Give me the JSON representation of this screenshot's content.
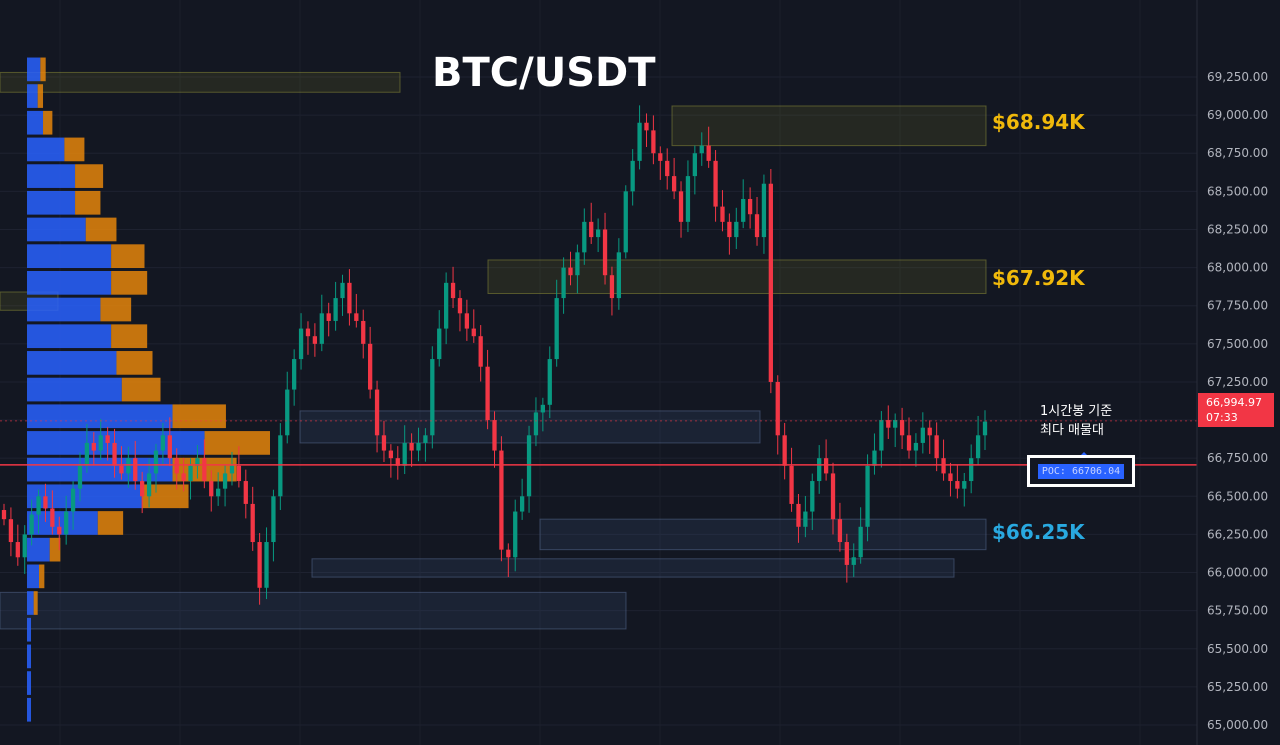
{
  "title": "BTC/USDT",
  "levels": {
    "top": {
      "label": "$68.94K",
      "color": "#f0b90b"
    },
    "mid": {
      "label": "$67.92K",
      "color": "#f0b90b"
    },
    "bottom": {
      "label": "$66.25K",
      "color": "#29a9e0"
    }
  },
  "note": {
    "line1": "1시간봉 기준",
    "line2": "최다 매물대"
  },
  "poc": {
    "label": "POC: 66706.04",
    "price": 66706.04
  },
  "current": {
    "price": "66,994.97",
    "countdown": "07:33"
  },
  "colors": {
    "up": "#089981",
    "down": "#f23645",
    "background": "#131722",
    "vp_blue": "#2962ff",
    "vp_orange": "#e5850b"
  },
  "chart_data": {
    "type": "candlestick",
    "ylim": [
      65000,
      69400
    ],
    "y_ticks": [
      "69,250.00",
      "69,000.00",
      "68,750.00",
      "68,500.00",
      "68,250.00",
      "68,000.00",
      "67,750.00",
      "67,500.00",
      "67,250.00",
      "67,000.00",
      "66,750.00",
      "66,500.00",
      "66,250.00",
      "66,000.00",
      "65,750.00",
      "65,500.00",
      "65,250.00",
      "65,000.00"
    ],
    "closes": [
      66350,
      66200,
      66100,
      66250,
      66380,
      66500,
      66420,
      66300,
      66250,
      66400,
      66550,
      66700,
      66850,
      66800,
      66900,
      66850,
      66700,
      66650,
      66750,
      66600,
      66500,
      66650,
      66800,
      66900,
      66750,
      66650,
      66600,
      66700,
      66750,
      66600,
      66500,
      66550,
      66650,
      66700,
      66600,
      66450,
      66200,
      65900,
      66200,
      66500,
      66900,
      67200,
      67400,
      67600,
      67550,
      67500,
      67700,
      67650,
      67800,
      67900,
      67700,
      67650,
      67500,
      67200,
      66900,
      66800,
      66750,
      66700,
      66850,
      66800,
      66850,
      66900,
      67400,
      67600,
      67900,
      67800,
      67700,
      67600,
      67550,
      67350,
      67000,
      66800,
      66150,
      66100,
      66400,
      66500,
      66900,
      67050,
      67100,
      67400,
      67800,
      68000,
      67950,
      68100,
      68300,
      68200,
      68250,
      67950,
      67800,
      68100,
      68500,
      68700,
      68950,
      68900,
      68750,
      68700,
      68600,
      68500,
      68300,
      68600,
      68750,
      68800,
      68700,
      68400,
      68300,
      68200,
      68300,
      68450,
      68350,
      68200,
      68550,
      67250,
      66900,
      66700,
      66450,
      66300,
      66400,
      66600,
      66750,
      66650,
      66350,
      66200,
      66050,
      66100,
      66300,
      66700,
      66800,
      67000,
      66950,
      67000,
      66900,
      66800,
      66850,
      66950,
      66900,
      66750,
      66650,
      66600,
      66550,
      66600,
      66750,
      66900,
      66990
    ],
    "volume_profile": [
      {
        "price": 69300,
        "up": 0.1,
        "down": 0.04
      },
      {
        "price": 69125,
        "up": 0.08,
        "down": 0.04
      },
      {
        "price": 68950,
        "up": 0.12,
        "down": 0.07
      },
      {
        "price": 68775,
        "up": 0.28,
        "down": 0.15
      },
      {
        "price": 68600,
        "up": 0.36,
        "down": 0.21
      },
      {
        "price": 68425,
        "up": 0.36,
        "down": 0.19
      },
      {
        "price": 68250,
        "up": 0.44,
        "down": 0.23
      },
      {
        "price": 68075,
        "up": 0.63,
        "down": 0.25
      },
      {
        "price": 67900,
        "up": 0.63,
        "down": 0.27
      },
      {
        "price": 67725,
        "up": 0.55,
        "down": 0.23
      },
      {
        "price": 67550,
        "up": 0.63,
        "down": 0.27
      },
      {
        "price": 67375,
        "up": 0.67,
        "down": 0.27
      },
      {
        "price": 67200,
        "up": 0.71,
        "down": 0.29
      },
      {
        "price": 67025,
        "up": 1.09,
        "down": 0.4
      },
      {
        "price": 66850,
        "up": 1.33,
        "down": 0.49
      },
      {
        "price": 66675,
        "up": 1.09,
        "down": 0.48
      },
      {
        "price": 66500,
        "up": 0.86,
        "down": 0.35
      },
      {
        "price": 66325,
        "up": 0.53,
        "down": 0.19
      },
      {
        "price": 66150,
        "up": 0.17,
        "down": 0.08
      },
      {
        "price": 65975,
        "up": 0.09,
        "down": 0.04
      },
      {
        "price": 65800,
        "up": 0.05,
        "down": 0.03
      },
      {
        "price": 65625,
        "up": 0.03,
        "down": 0.0
      },
      {
        "price": 65450,
        "up": 0.03,
        "down": 0.0
      },
      {
        "price": 65275,
        "up": 0.03,
        "down": 0.0
      },
      {
        "price": 65100,
        "up": 0.03,
        "down": 0.0
      }
    ],
    "zones": [
      {
        "from": 69150,
        "to": 69280,
        "kind": "supply"
      },
      {
        "from": 68800,
        "to": 69060,
        "kind": "supply"
      },
      {
        "from": 67830,
        "to": 68050,
        "kind": "supply"
      },
      {
        "from": 67720,
        "to": 67840,
        "kind": "supply"
      },
      {
        "from": 66850,
        "to": 67060,
        "kind": "demand"
      },
      {
        "from": 66150,
        "to": 66350,
        "kind": "demand"
      },
      {
        "from": 65970,
        "to": 66090,
        "kind": "demand"
      },
      {
        "from": 65630,
        "to": 65870,
        "kind": "demand"
      }
    ]
  }
}
